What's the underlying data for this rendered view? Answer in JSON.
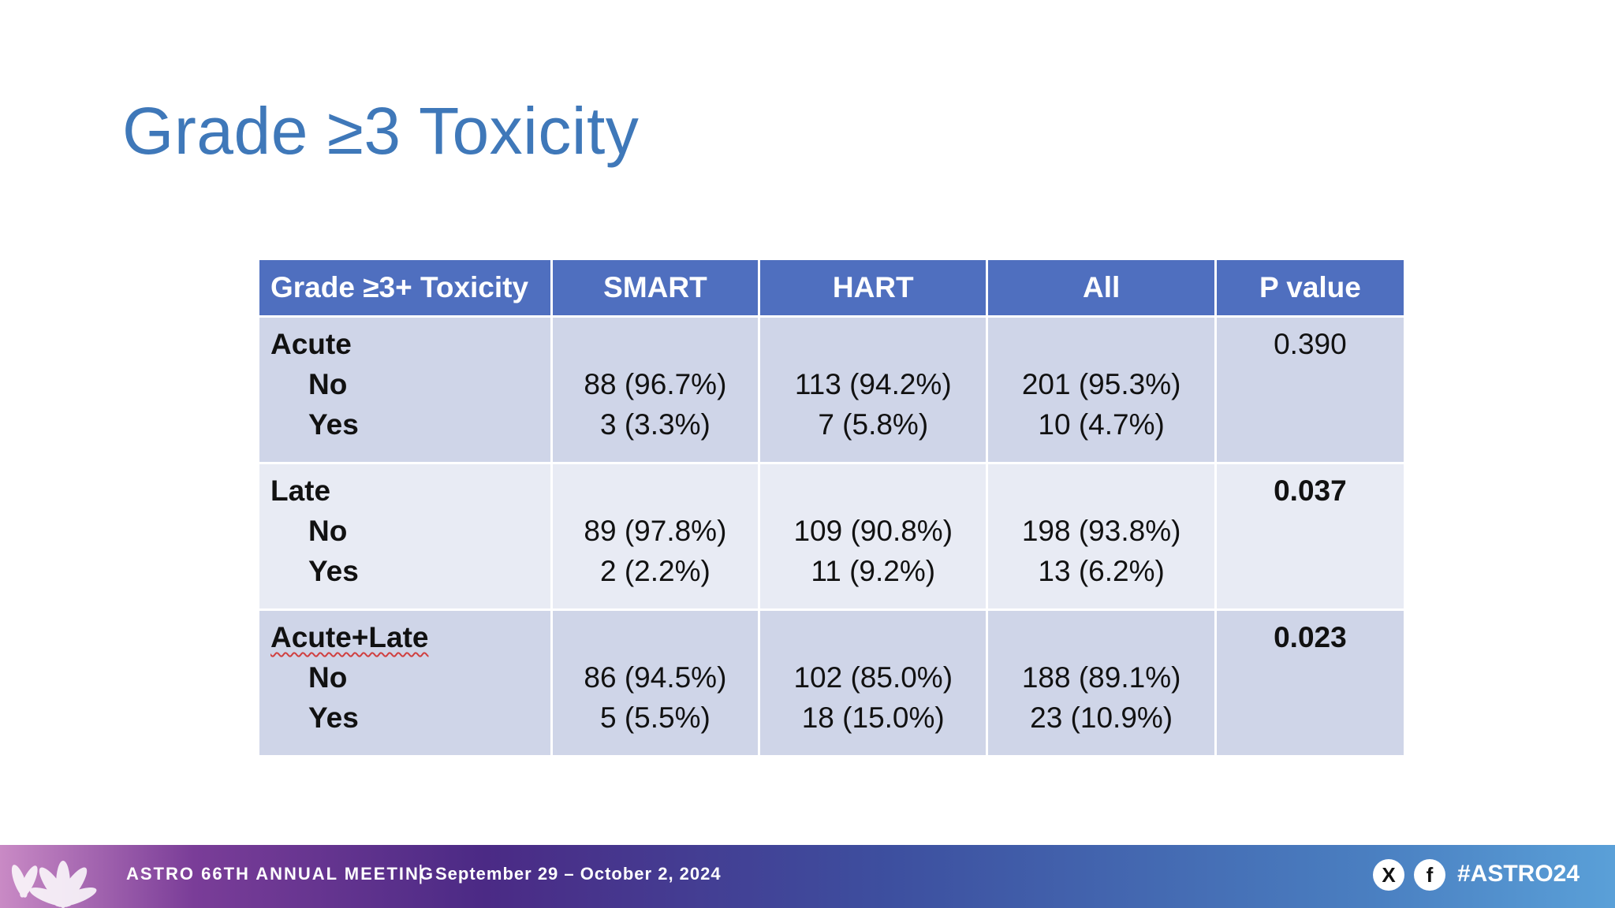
{
  "slide": {
    "title": "Grade ≥3 Toxicity"
  },
  "table": {
    "headers": [
      "Grade ≥3+ Toxicity",
      "SMART",
      "HART",
      "All",
      "P value"
    ],
    "groups": [
      {
        "label": "Acute",
        "sub_no": "No",
        "sub_yes": "Yes",
        "smart_no": "88 (96.7%)",
        "smart_yes": "3 (3.3%)",
        "hart_no": "113 (94.2%)",
        "hart_yes": "7 (5.8%)",
        "all_no": "201 (95.3%)",
        "all_yes": "10 (4.7%)",
        "p": "0.390"
      },
      {
        "label": "Late",
        "sub_no": "No",
        "sub_yes": "Yes",
        "smart_no": "89 (97.8%)",
        "smart_yes": "2 (2.2%)",
        "hart_no": "109 (90.8%)",
        "hart_yes": "11 (9.2%)",
        "all_no": "198 (93.8%)",
        "all_yes": "13 (6.2%)",
        "p": "0.037"
      },
      {
        "label": "Acute+Late",
        "sub_no": "No",
        "sub_yes": "Yes",
        "smart_no": "86 (94.5%)",
        "smart_yes": "5 (5.5%)",
        "hart_no": "102 (85.0%)",
        "hart_yes": "18 (15.0%)",
        "all_no": "188 (89.1%)",
        "all_yes": "23 (10.9%)",
        "p": "0.023"
      }
    ]
  },
  "footer": {
    "meeting": "ASTRO 66TH ANNUAL MEETING",
    "separator": "|",
    "dates": "September 29 – October 2, 2024",
    "x_icon": "X",
    "facebook_icon": "f",
    "hashtag": "#ASTRO24"
  },
  "colors": {
    "title": "#3f78b9",
    "header_bg": "#4f6fbf",
    "row_dark": "#cfd5e8",
    "row_light": "#e8ebf4"
  }
}
